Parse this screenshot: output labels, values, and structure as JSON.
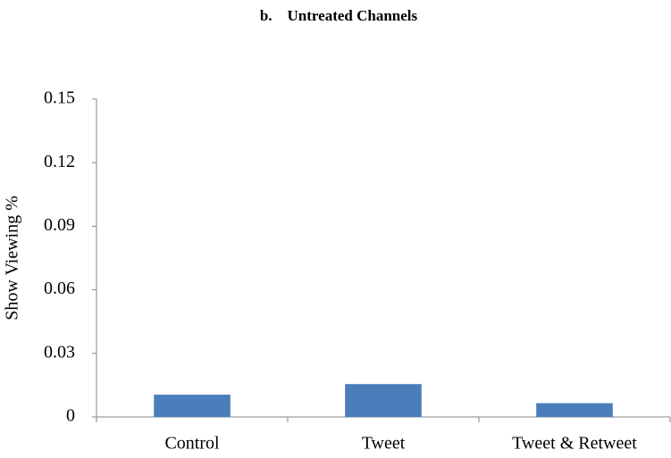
{
  "chart_data": {
    "type": "bar",
    "title": "b.    Untreated Channels",
    "y_label": "Show Viewing %",
    "categories": [
      "Control",
      "Tweet",
      "Tweet & Retweet"
    ],
    "values": [
      0.0105,
      0.0155,
      0.0065
    ],
    "color": "#4a7ebb",
    "ylim": [
      0,
      0.15
    ],
    "yticks": [
      0,
      0.03,
      0.06,
      0.09,
      0.12,
      0.15
    ],
    "grid": false
  }
}
